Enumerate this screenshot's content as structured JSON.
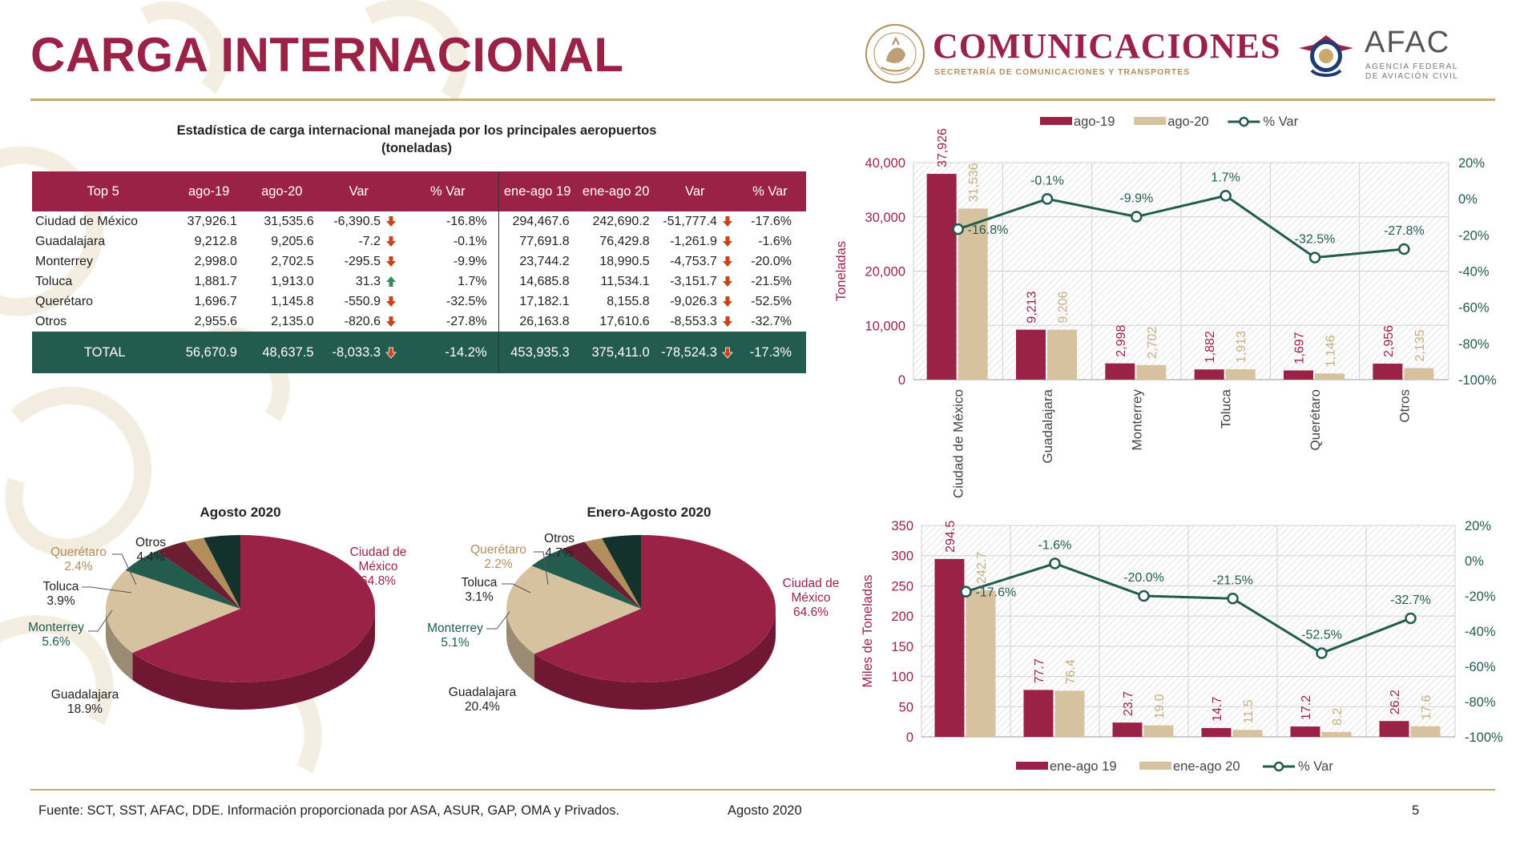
{
  "title": "CARGA INTERNACIONAL",
  "logos": {
    "sct_name": "COMUNICACIONES",
    "sct_sub": "SECRETARÍA DE COMUNICACIONES Y TRANSPORTES",
    "sct_seal_text": "ESTADOS UNIDOS MEXICANOS",
    "afac_name": "AFAC",
    "afac_sub_1": "AGENCIA FEDERAL",
    "afac_sub_2": "DE AVIACIÓN CIVIL"
  },
  "colors": {
    "guinda": "#9b2247",
    "beige": "#d6c29f",
    "green": "#235b4e",
    "dark_green": "#13322b",
    "gold": "#b38e5d",
    "arrow_down": "#c9431c",
    "arrow_up": "#3a8a5f"
  },
  "table": {
    "title_line1": "Estadística de carga internacional manejada por los principales aeropuertos",
    "title_line2": "(toneladas)",
    "headers": [
      "Top 5",
      "ago-19",
      "ago-20",
      "Var",
      "% Var",
      "ene-ago 19",
      "ene-ago 20",
      "Var",
      "% Var"
    ],
    "rows": [
      {
        "name": "Ciudad de México",
        "ago19": "37,926.1",
        "ago20": "31,535.6",
        "var": "-6,390.5",
        "var_dir": "down",
        "pvar": "-16.8%",
        "ea19": "294,467.6",
        "ea20": "242,690.2",
        "eavar": "-51,777.4",
        "eavar_dir": "down",
        "eapvar": "-17.6%"
      },
      {
        "name": "Guadalajara",
        "ago19": "9,212.8",
        "ago20": "9,205.6",
        "var": "-7.2",
        "var_dir": "down",
        "pvar": "-0.1%",
        "ea19": "77,691.8",
        "ea20": "76,429.8",
        "eavar": "-1,261.9",
        "eavar_dir": "down",
        "eapvar": "-1.6%"
      },
      {
        "name": "Monterrey",
        "ago19": "2,998.0",
        "ago20": "2,702.5",
        "var": "-295.5",
        "var_dir": "down",
        "pvar": "-9.9%",
        "ea19": "23,744.2",
        "ea20": "18,990.5",
        "eavar": "-4,753.7",
        "eavar_dir": "down",
        "eapvar": "-20.0%"
      },
      {
        "name": "Toluca",
        "ago19": "1,881.7",
        "ago20": "1,913.0",
        "var": "31.3",
        "var_dir": "up",
        "pvar": "1.7%",
        "ea19": "14,685.8",
        "ea20": "11,534.1",
        "eavar": "-3,151.7",
        "eavar_dir": "down",
        "eapvar": "-21.5%"
      },
      {
        "name": "Querétaro",
        "ago19": "1,696.7",
        "ago20": "1,145.8",
        "var": "-550.9",
        "var_dir": "down",
        "pvar": "-32.5%",
        "ea19": "17,182.1",
        "ea20": "8,155.8",
        "eavar": "-9,026.3",
        "eavar_dir": "down",
        "eapvar": "-52.5%"
      },
      {
        "name": "Otros",
        "ago19": "2,955.6",
        "ago20": "2,135.0",
        "var": "-820.6",
        "var_dir": "down",
        "pvar": "-27.8%",
        "ea19": "26,163.8",
        "ea20": "17,610.6",
        "eavar": "-8,553.3",
        "eavar_dir": "down",
        "eapvar": "-32.7%"
      }
    ],
    "total": {
      "name": "TOTAL",
      "ago19": "56,670.9",
      "ago20": "48,637.5",
      "var": "-8,033.3",
      "var_dir": "down",
      "pvar": "-14.2%",
      "ea19": "453,935.3",
      "ea20": "375,411.0",
      "eavar": "-78,524.3",
      "eavar_dir": "down",
      "eapvar": "-17.3%"
    }
  },
  "chart_data": [
    {
      "type": "bar",
      "categories": [
        "Ciudad de México",
        "Guadalajara",
        "Monterrey",
        "Toluca",
        "Querétaro",
        "Otros"
      ],
      "series": [
        {
          "name": "ago-19",
          "values": [
            37926,
            9213,
            2998,
            1882,
            1697,
            2956
          ],
          "labels": [
            "37,926",
            "9,213",
            "2,998",
            "1,882",
            "1,697",
            "2,956"
          ],
          "color": "#9b2247"
        },
        {
          "name": "ago-20",
          "values": [
            31536,
            9206,
            2702,
            1913,
            1146,
            2135
          ],
          "labels": [
            "31,536",
            "9,206",
            "2,702",
            "1,913",
            "1,146",
            "2,135"
          ],
          "color": "#d6c29f"
        }
      ],
      "line_series": {
        "name": "% Var",
        "values": [
          -16.8,
          -0.1,
          -9.9,
          1.7,
          -32.5,
          -27.8
        ],
        "labels": [
          "-16.8%",
          "-0.1%",
          "-9.9%",
          "1.7%",
          "-32.5%",
          "-27.8%"
        ],
        "color": "#235b4e"
      },
      "ylabel": "Toneladas",
      "ylim": [
        0,
        40000
      ],
      "yticks": [
        "0",
        "10,000",
        "20,000",
        "30,000",
        "40,000"
      ],
      "y2lim": [
        -100,
        20
      ],
      "y2ticks": [
        "-100%",
        "-80%",
        "-60%",
        "-40%",
        "-20%",
        "0%",
        "20%"
      ],
      "legend": "top",
      "grid": true
    },
    {
      "type": "bar",
      "categories": [
        "Ciudad de México",
        "Guadalajara",
        "Monterrey",
        "Toluca",
        "Querétaro",
        "Otros"
      ],
      "series": [
        {
          "name": "ene-ago 19",
          "values": [
            294.5,
            77.7,
            23.7,
            14.7,
            17.2,
            26.2
          ],
          "labels": [
            "294.5",
            "77.7",
            "23.7",
            "14.7",
            "17.2",
            "26.2"
          ],
          "color": "#9b2247"
        },
        {
          "name": "ene-ago 20",
          "values": [
            242.7,
            76.4,
            19.0,
            11.5,
            8.2,
            17.6
          ],
          "labels": [
            "242.7",
            "76.4",
            "19.0",
            "11.5",
            "8.2",
            "17.6"
          ],
          "color": "#d6c29f"
        }
      ],
      "line_series": {
        "name": "% Var",
        "values": [
          -17.6,
          -1.6,
          -20.0,
          -21.5,
          -52.5,
          -32.7
        ],
        "labels": [
          "-17.6%",
          "-1.6%",
          "-20.0%",
          "-21.5%",
          "-52.5%",
          "-32.7%"
        ],
        "color": "#235b4e"
      },
      "ylabel": "Miles de Toneladas",
      "ylim": [
        0,
        350
      ],
      "yticks": [
        "0",
        "50",
        "100",
        "150",
        "200",
        "250",
        "300",
        "350"
      ],
      "y2lim": [
        -100,
        20
      ],
      "y2ticks": [
        "-100%",
        "-80%",
        "-60%",
        "-40%",
        "-20%",
        "0%",
        "20%"
      ],
      "legend": "bottom",
      "grid": true
    },
    {
      "type": "pie",
      "title": "Agosto 2020",
      "slices": [
        {
          "label": "Ciudad de México",
          "value": 64.8,
          "text": "64.8%",
          "color": "#9b2247"
        },
        {
          "label": "Guadalajara",
          "value": 18.9,
          "text": "18.9%",
          "color": "#d6c29f"
        },
        {
          "label": "Monterrey",
          "value": 5.6,
          "text": "5.6%",
          "color": "#235b4e"
        },
        {
          "label": "Toluca",
          "value": 3.9,
          "text": "3.9%",
          "color": "#6b1d31"
        },
        {
          "label": "Querétaro",
          "value": 2.4,
          "text": "2.4%",
          "color": "#b38e5d"
        },
        {
          "label": "Otros",
          "value": 4.4,
          "text": "4.4%",
          "color": "#13322b"
        }
      ]
    },
    {
      "type": "pie",
      "title": "Enero-Agosto 2020",
      "slices": [
        {
          "label": "Ciudad de México",
          "value": 64.6,
          "text": "64.6%",
          "color": "#9b2247"
        },
        {
          "label": "Guadalajara",
          "value": 20.4,
          "text": "20.4%",
          "color": "#d6c29f"
        },
        {
          "label": "Monterrey",
          "value": 5.1,
          "text": "5.1%",
          "color": "#235b4e"
        },
        {
          "label": "Toluca",
          "value": 3.1,
          "text": "3.1%",
          "color": "#6b1d31"
        },
        {
          "label": "Querétaro",
          "value": 2.2,
          "text": "2.2%",
          "color": "#b38e5d"
        },
        {
          "label": "Otros",
          "value": 4.7,
          "text": "4.7%",
          "color": "#13322b"
        }
      ]
    }
  ],
  "footer": {
    "source": "Fuente: SCT, SST, AFAC, DDE. Información proporcionada por ASA, ASUR, GAP, OMA y Privados.",
    "date": "Agosto 2020",
    "page": "5"
  }
}
